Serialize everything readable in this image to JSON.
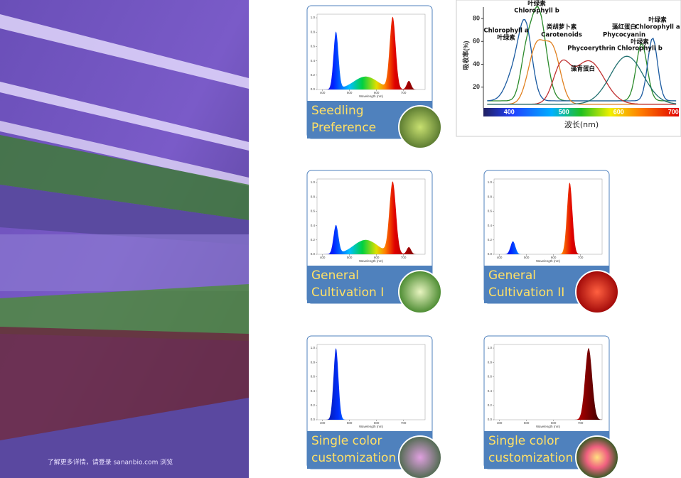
{
  "photo_caption": "了解更多详情，请登录 sananbio.com 浏览",
  "absorption_chart": {
    "ylabel": "吸收率(%)",
    "xlabel": "波长(nm)",
    "xlim": [
      353,
      710
    ],
    "ylim": [
      3,
      90
    ],
    "xticks": [
      400,
      500,
      600,
      700
    ],
    "yticks": [
      20,
      40,
      60,
      80
    ],
    "labels": [
      "叶绿素",
      "Chlorophyll b",
      "Chlorophyll a",
      "叶绿素",
      "类胡萝卜素",
      "Carotenoids",
      "藻红蛋白",
      "Phycocyanin",
      "叶绿素",
      "Chlorophyll a",
      "Phycoerythrin",
      "叶绿素",
      "Chlorophyll b",
      "藻青蛋白"
    ]
  },
  "spectrum_axes": {
    "xlabel": "Wavelength (nm)",
    "xlim": [
      380,
      780
    ],
    "xticks": [
      400,
      500,
      600,
      700
    ],
    "ylim": [
      0,
      1.05
    ],
    "yticks": [
      {
        "value": 0,
        "label": "0.0"
      },
      {
        "value": 0.2,
        "label": "0.2"
      },
      {
        "value": 0.4,
        "label": "0.4"
      },
      {
        "value": 0.6,
        "label": "0.6"
      },
      {
        "value": 0.8,
        "label": "0.8"
      },
      {
        "value": 1,
        "label": "1.0"
      }
    ]
  },
  "cards": [
    {
      "label": [
        "Seedling",
        "Preference"
      ]
    },
    {
      "label": [
        "General",
        "Cultivation I"
      ]
    },
    {
      "label": [
        "General",
        "Cultivation II"
      ]
    },
    {
      "label": [
        "Single color",
        "customization"
      ]
    },
    {
      "label": [
        "Single color",
        "customization"
      ]
    }
  ]
}
